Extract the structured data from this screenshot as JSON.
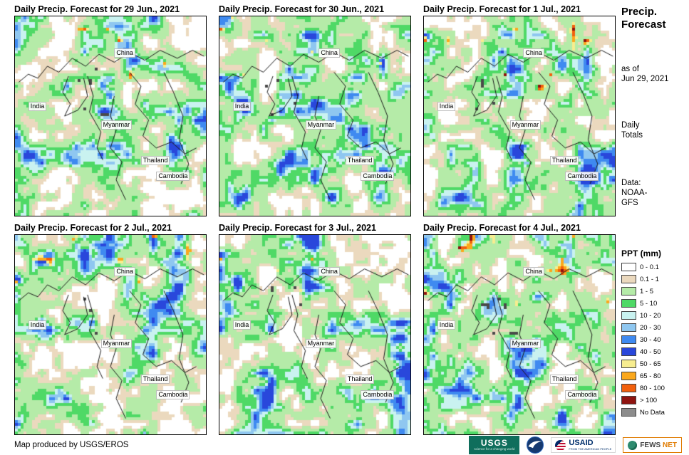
{
  "panels": [
    {
      "title": "Daily Precip. Forecast for 29 Jun., 2021"
    },
    {
      "title": "Daily Precip. Forecast for 30 Jun., 2021"
    },
    {
      "title": "Daily Precip. Forecast for 1 Jul., 2021"
    },
    {
      "title": "Daily Precip. Forecast for 2 Jul., 2021"
    },
    {
      "title": "Daily Precip. Forecast for 3 Jul., 2021"
    },
    {
      "title": "Daily Precip. Forecast for 4 Jul., 2021"
    }
  ],
  "map_labels": [
    "China",
    "India",
    "Myanmar",
    "Thailand",
    "Cambodia"
  ],
  "sidebar": {
    "title1": "Precip.",
    "title2": "Forecast",
    "asof1": "as of",
    "asof2": "Jun 29, 2021",
    "daily1": "Daily",
    "daily2": "Totals",
    "data1": "Data:",
    "data2": "NOAA-",
    "data3": "GFS"
  },
  "legend": {
    "title": "PPT (mm)",
    "entries": [
      {
        "label": "0 - 0.1",
        "color": "#FFFFFF"
      },
      {
        "label": "0.1 - 1",
        "color": "#EBD9BE"
      },
      {
        "label": "1 - 5",
        "color": "#B5EBA8"
      },
      {
        "label": "5 - 10",
        "color": "#4FD966"
      },
      {
        "label": "10 - 20",
        "color": "#C9F2F0"
      },
      {
        "label": "20 - 30",
        "color": "#8FC7F0"
      },
      {
        "label": "30 - 40",
        "color": "#3F8AF0"
      },
      {
        "label": "40 - 50",
        "color": "#2947DB"
      },
      {
        "label": "50 - 65",
        "color": "#F7ED8F"
      },
      {
        "label": "65 - 80",
        "color": "#FBA81C"
      },
      {
        "label": "80 - 100",
        "color": "#F2600D"
      },
      {
        "label": "> 100",
        "color": "#8F1410"
      },
      {
        "label": "No Data",
        "color": "#8C8C8C"
      }
    ]
  },
  "footer": {
    "credit": "Map produced by USGS/EROS",
    "logos": {
      "usgs": {
        "name": "USGS",
        "tagline": "science for a changing world"
      },
      "noaa": {
        "name": "NOAA"
      },
      "usaid": {
        "name": "USAID",
        "tagline": "FROM THE AMERICAN PEOPLE"
      },
      "fewsnet": {
        "name": "FEWS",
        "name2": "NET"
      }
    }
  }
}
